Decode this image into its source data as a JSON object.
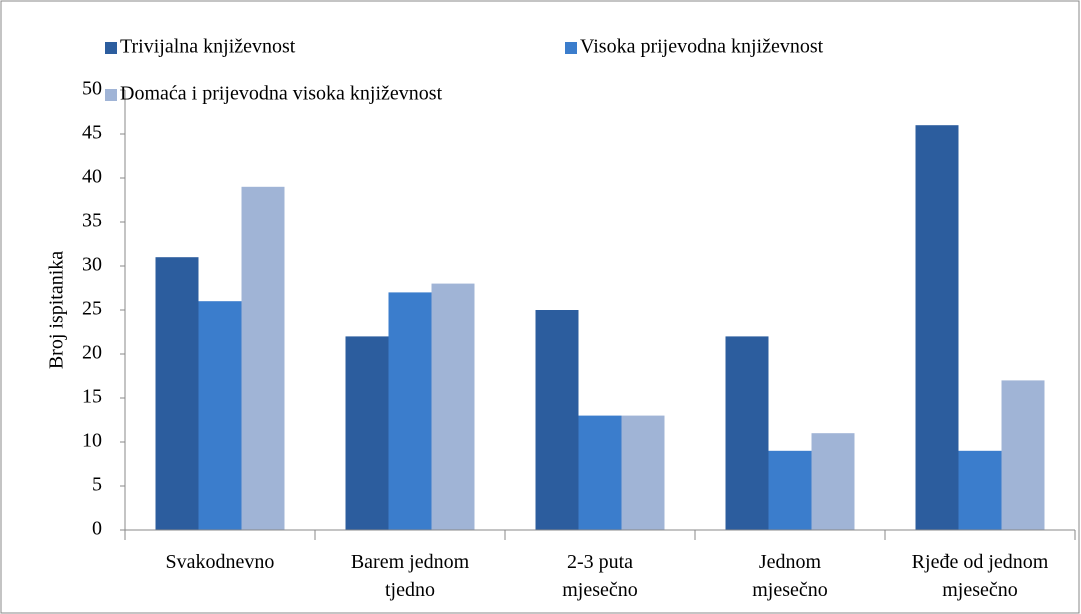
{
  "chart_data": {
    "type": "bar",
    "y_label": "Broj ispitanika",
    "categories": [
      "Svakodnevno",
      "Barem jednom\ntjedno",
      "2-3 puta\nmjesečno",
      "Jednom\nmjesečno",
      "Rjeđe od jednom\nmjesečno"
    ],
    "series": [
      {
        "name": "Trivijalna književnost",
        "color": "#2c5d9e",
        "values": [
          31,
          22,
          25,
          22,
          46
        ]
      },
      {
        "name": "Visoka prijevodna književnost",
        "color": "#3b7dcc",
        "values": [
          26,
          27,
          13,
          9,
          9
        ]
      },
      {
        "name": "Domaća i prijevodna visoka književnost",
        "color": "#a0b4d6",
        "values": [
          39,
          28,
          13,
          11,
          17
        ]
      }
    ],
    "ylim": [
      0,
      50
    ],
    "yticks": [
      0,
      5,
      10,
      15,
      20,
      25,
      30,
      35,
      40,
      45,
      50
    ],
    "grid": false,
    "legend": "top"
  }
}
